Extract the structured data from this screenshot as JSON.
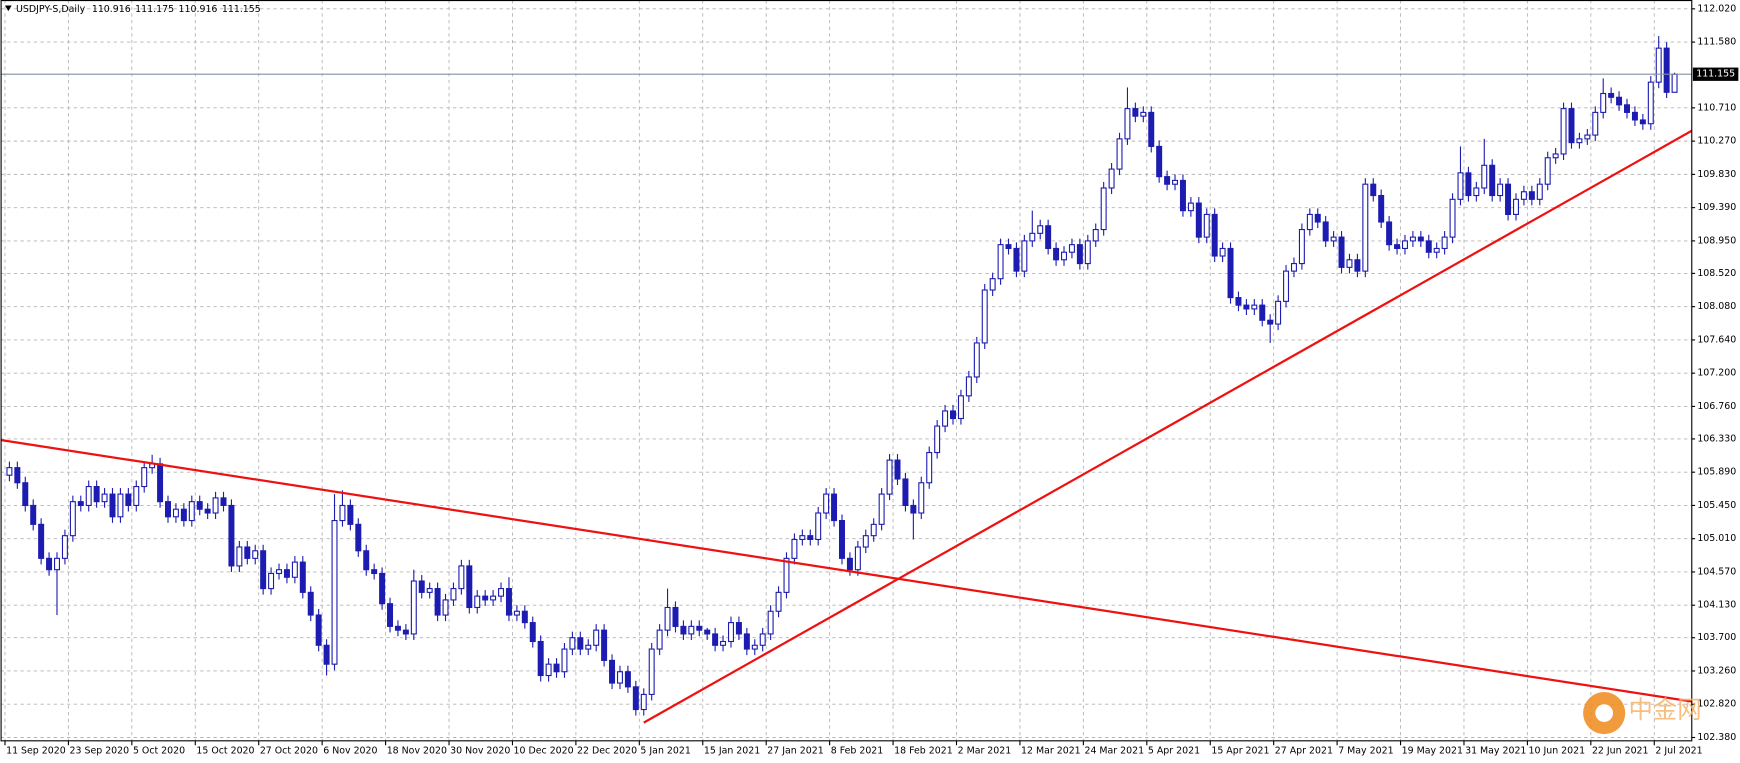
{
  "chart_data": {
    "type": "candlestick",
    "title": "USDJPY-S,Daily",
    "categories": [
      "11 Sep 2020",
      null,
      null,
      null,
      null,
      null,
      null,
      null,
      "23 Sep 2020",
      null,
      null,
      null,
      null,
      null,
      null,
      null,
      "5 Oct 2020",
      null,
      null,
      null,
      null,
      null,
      null,
      null,
      "15 Oct 2020",
      null,
      null,
      null,
      null,
      null,
      null,
      null,
      "27 Oct 2020",
      null,
      null,
      null,
      null,
      null,
      null,
      null,
      "6 Nov 2020",
      null,
      null,
      null,
      null,
      null,
      null,
      null,
      "18 Nov 2020",
      null,
      null,
      null,
      null,
      null,
      null,
      null,
      "30 Nov 2020",
      null,
      null,
      null,
      null,
      null,
      null,
      null,
      "10 Dec 2020",
      null,
      null,
      null,
      null,
      null,
      null,
      null,
      "22 Dec 2020",
      null,
      null,
      null,
      null,
      null,
      null,
      null,
      "5 Jan 2021",
      null,
      null,
      null,
      null,
      null,
      null,
      null,
      "15 Jan 2021",
      null,
      null,
      null,
      null,
      null,
      null,
      null,
      "27 Jan 2021",
      null,
      null,
      null,
      null,
      null,
      null,
      null,
      "8 Feb 2021",
      null,
      null,
      null,
      null,
      null,
      null,
      null,
      "18 Feb 2021",
      null,
      null,
      null,
      null,
      null,
      null,
      null,
      "2 Mar 2021",
      null,
      null,
      null,
      null,
      null,
      null,
      null,
      "12 Mar 2021",
      null,
      null,
      null,
      null,
      null,
      null,
      null,
      "24 Mar 2021",
      null,
      null,
      null,
      null,
      null,
      null,
      null,
      "5 Apr 2021",
      null,
      null,
      null,
      null,
      null,
      null,
      null,
      "15 Apr 2021",
      null,
      null,
      null,
      null,
      null,
      null,
      null,
      "27 Apr 2021",
      null,
      null,
      null,
      null,
      null,
      null,
      null,
      "7 May 2021",
      null,
      null,
      null,
      null,
      null,
      null,
      null,
      "19 May 2021",
      null,
      null,
      null,
      null,
      null,
      null,
      null,
      "31 May 2021",
      null,
      null,
      null,
      null,
      null,
      null,
      null,
      "10 Jun 2021",
      null,
      null,
      null,
      null,
      null,
      null,
      null,
      "22 Jun 2021",
      null,
      null,
      null,
      null,
      null,
      null,
      null,
      "2 Jul 2021",
      null,
      null
    ],
    "open": [
      105.85,
      105.95,
      105.75,
      105.45,
      105.2,
      104.75,
      104.6,
      104.75,
      105.05,
      105.5,
      105.45,
      105.7,
      105.5,
      105.6,
      105.3,
      105.6,
      105.45,
      105.7,
      105.95,
      106.0,
      105.5,
      105.3,
      105.4,
      105.25,
      105.5,
      105.4,
      105.35,
      105.55,
      105.45,
      104.65,
      104.9,
      104.75,
      104.85,
      104.35,
      104.55,
      104.6,
      104.5,
      104.7,
      104.3,
      104.0,
      103.6,
      103.35,
      105.25,
      105.45,
      105.2,
      104.85,
      104.6,
      104.55,
      104.15,
      103.85,
      103.8,
      103.75,
      104.45,
      104.3,
      104.35,
      104.0,
      104.2,
      104.35,
      104.65,
      104.1,
      104.25,
      104.2,
      104.25,
      104.35,
      104.0,
      104.05,
      103.9,
      103.65,
      103.2,
      103.35,
      103.25,
      103.55,
      103.7,
      103.55,
      103.6,
      103.8,
      103.4,
      103.1,
      103.25,
      103.05,
      102.75,
      102.95,
      103.55,
      103.8,
      104.1,
      103.85,
      103.75,
      103.85,
      103.8,
      103.75,
      103.6,
      103.65,
      103.9,
      103.75,
      103.55,
      103.6,
      103.75,
      104.05,
      104.3,
      104.75,
      105.0,
      105.05,
      105.0,
      105.35,
      105.6,
      105.25,
      104.75,
      104.6,
      104.9,
      105.05,
      105.2,
      105.6,
      106.05,
      105.8,
      105.45,
      105.35,
      105.75,
      106.15,
      106.5,
      106.7,
      106.6,
      106.9,
      107.15,
      107.6,
      108.3,
      108.45,
      108.9,
      108.85,
      108.55,
      108.95,
      109.05,
      109.15,
      108.85,
      108.7,
      108.8,
      108.9,
      108.65,
      108.95,
      109.1,
      109.65,
      109.9,
      110.3,
      110.7,
      110.6,
      110.65,
      110.2,
      109.8,
      109.7,
      109.75,
      109.35,
      109.45,
      109.0,
      109.3,
      108.75,
      108.85,
      108.2,
      108.1,
      108.05,
      108.1,
      107.9,
      107.85,
      108.15,
      108.55,
      108.65,
      109.1,
      109.3,
      109.2,
      108.95,
      109.0,
      108.6,
      108.7,
      108.55,
      109.7,
      109.55,
      109.2,
      108.9,
      108.85,
      108.95,
      109.0,
      108.95,
      108.8,
      108.85,
      109.0,
      109.5,
      109.85,
      109.55,
      109.65,
      109.95,
      109.55,
      109.7,
      109.3,
      109.5,
      109.6,
      109.5,
      109.7,
      110.05,
      110.1,
      110.7,
      110.25,
      110.3,
      110.35,
      110.65,
      110.9,
      110.85,
      110.75,
      110.65,
      110.55,
      110.5,
      111.05,
      111.5,
      110.916
    ],
    "high": [
      106.03,
      106.03,
      105.83,
      105.53,
      105.28,
      104.83,
      104.83,
      105.13,
      105.58,
      105.58,
      105.78,
      105.78,
      105.68,
      105.68,
      105.68,
      105.68,
      105.78,
      106.03,
      106.12,
      106.08,
      105.58,
      105.48,
      105.48,
      105.58,
      105.58,
      105.48,
      105.63,
      105.63,
      105.53,
      104.98,
      104.98,
      104.93,
      104.93,
      104.63,
      104.68,
      104.68,
      104.78,
      104.78,
      104.38,
      104.08,
      103.68,
      105.6,
      105.65,
      105.53,
      105.28,
      104.93,
      104.68,
      104.63,
      104.23,
      103.93,
      103.88,
      104.6,
      104.53,
      104.43,
      104.43,
      104.28,
      104.43,
      104.73,
      104.73,
      104.33,
      104.33,
      104.33,
      104.43,
      104.5,
      104.13,
      104.13,
      103.98,
      103.73,
      103.43,
      103.43,
      103.63,
      103.78,
      103.78,
      103.68,
      103.88,
      103.88,
      103.48,
      103.33,
      103.33,
      103.13,
      103.03,
      103.63,
      103.88,
      104.35,
      104.18,
      103.93,
      103.93,
      103.93,
      103.83,
      103.83,
      103.73,
      103.98,
      103.98,
      103.83,
      103.68,
      103.83,
      104.13,
      104.38,
      104.83,
      105.08,
      105.13,
      105.13,
      105.43,
      105.68,
      105.68,
      105.33,
      104.83,
      104.98,
      105.13,
      105.28,
      105.68,
      106.13,
      106.13,
      105.88,
      105.53,
      105.83,
      106.23,
      106.58,
      106.78,
      106.78,
      106.98,
      107.23,
      107.68,
      108.38,
      108.53,
      108.98,
      108.98,
      108.93,
      109.03,
      109.35,
      109.23,
      109.23,
      108.93,
      108.88,
      108.98,
      108.98,
      109.03,
      109.18,
      109.73,
      109.98,
      110.38,
      110.98,
      110.78,
      110.73,
      110.73,
      110.28,
      109.88,
      109.83,
      109.83,
      109.53,
      109.53,
      109.38,
      109.38,
      108.93,
      108.93,
      108.28,
      108.18,
      108.18,
      108.18,
      107.98,
      108.23,
      108.63,
      108.73,
      109.18,
      109.38,
      109.38,
      109.28,
      109.08,
      109.08,
      108.78,
      108.78,
      109.78,
      109.78,
      109.63,
      109.28,
      108.98,
      109.03,
      109.08,
      109.08,
      109.03,
      108.93,
      109.08,
      109.58,
      110.2,
      109.93,
      109.73,
      110.3,
      110.03,
      109.78,
      109.78,
      109.58,
      109.68,
      109.68,
      109.78,
      110.13,
      110.18,
      110.78,
      110.78,
      110.38,
      110.43,
      110.73,
      111.1,
      110.98,
      110.93,
      110.83,
      110.73,
      110.63,
      111.13,
      111.66,
      111.58,
      111.175
    ],
    "low": [
      105.77,
      105.67,
      105.37,
      105.12,
      104.67,
      104.52,
      104.0,
      104.67,
      104.97,
      105.37,
      105.37,
      105.42,
      105.42,
      105.22,
      105.22,
      105.37,
      105.37,
      105.62,
      105.87,
      105.42,
      105.22,
      105.22,
      105.17,
      105.17,
      105.32,
      105.27,
      105.27,
      105.37,
      104.57,
      104.57,
      104.67,
      104.67,
      104.27,
      104.27,
      104.47,
      104.42,
      104.42,
      104.22,
      103.92,
      103.52,
      103.2,
      103.27,
      105.17,
      105.12,
      104.77,
      104.52,
      104.47,
      104.07,
      103.77,
      103.72,
      103.67,
      103.67,
      104.22,
      104.22,
      103.92,
      103.92,
      104.12,
      104.27,
      104.02,
      104.02,
      104.12,
      104.12,
      104.17,
      103.92,
      103.92,
      103.82,
      103.57,
      103.12,
      103.12,
      103.17,
      103.17,
      103.47,
      103.47,
      103.47,
      103.52,
      103.32,
      103.02,
      103.02,
      102.97,
      102.67,
      102.67,
      102.87,
      103.47,
      103.72,
      103.77,
      103.67,
      103.67,
      103.72,
      103.67,
      103.52,
      103.52,
      103.57,
      103.67,
      103.47,
      103.47,
      103.52,
      103.67,
      103.97,
      104.22,
      104.67,
      104.92,
      104.92,
      104.92,
      105.27,
      105.17,
      104.67,
      104.52,
      104.52,
      104.82,
      104.97,
      105.12,
      105.52,
      105.72,
      105.37,
      105.0,
      105.27,
      105.67,
      106.07,
      106.42,
      106.52,
      106.52,
      106.82,
      107.07,
      107.52,
      108.22,
      108.37,
      108.77,
      108.47,
      108.47,
      108.87,
      108.97,
      108.77,
      108.62,
      108.62,
      108.72,
      108.57,
      108.57,
      108.87,
      109.02,
      109.57,
      109.82,
      110.22,
      110.52,
      110.52,
      110.12,
      109.72,
      109.62,
      109.62,
      109.27,
      109.27,
      108.92,
      108.92,
      108.67,
      108.67,
      108.12,
      108.02,
      107.97,
      107.97,
      107.82,
      107.6,
      107.77,
      108.07,
      108.47,
      108.57,
      109.02,
      109.12,
      108.87,
      108.87,
      108.52,
      108.52,
      108.47,
      108.47,
      109.47,
      109.12,
      108.82,
      108.77,
      108.77,
      108.87,
      108.87,
      108.72,
      108.72,
      108.77,
      108.92,
      109.42,
      109.47,
      109.47,
      109.57,
      109.47,
      109.47,
      109.22,
      109.22,
      109.42,
      109.42,
      109.42,
      109.62,
      109.97,
      110.02,
      110.17,
      110.17,
      110.22,
      110.27,
      110.57,
      110.77,
      110.67,
      110.57,
      110.47,
      110.42,
      110.42,
      110.97,
      110.84,
      110.916
    ],
    "close": [
      105.95,
      105.75,
      105.45,
      105.2,
      104.75,
      104.6,
      104.75,
      105.05,
      105.5,
      105.45,
      105.7,
      105.5,
      105.6,
      105.3,
      105.6,
      105.45,
      105.7,
      105.95,
      106.0,
      105.5,
      105.3,
      105.4,
      105.25,
      105.5,
      105.4,
      105.35,
      105.55,
      105.45,
      104.65,
      104.9,
      104.75,
      104.85,
      104.35,
      104.55,
      104.6,
      104.5,
      104.7,
      104.3,
      104.0,
      103.6,
      103.35,
      105.25,
      105.45,
      105.2,
      104.85,
      104.6,
      104.55,
      104.15,
      103.85,
      103.8,
      103.75,
      104.45,
      104.3,
      104.35,
      104.0,
      104.2,
      104.35,
      104.65,
      104.1,
      104.25,
      104.2,
      104.25,
      104.35,
      104.0,
      104.05,
      103.9,
      103.65,
      103.2,
      103.35,
      103.25,
      103.55,
      103.7,
      103.55,
      103.6,
      103.8,
      103.4,
      103.1,
      103.25,
      103.05,
      102.75,
      102.95,
      103.55,
      103.8,
      104.1,
      103.85,
      103.75,
      103.85,
      103.8,
      103.75,
      103.6,
      103.65,
      103.9,
      103.75,
      103.55,
      103.6,
      103.75,
      104.05,
      104.3,
      104.75,
      105.0,
      105.05,
      105.0,
      105.35,
      105.6,
      105.25,
      104.75,
      104.6,
      104.9,
      105.05,
      105.2,
      105.6,
      106.05,
      105.8,
      105.45,
      105.35,
      105.75,
      106.15,
      106.5,
      106.7,
      106.6,
      106.9,
      107.15,
      107.6,
      108.3,
      108.45,
      108.9,
      108.85,
      108.55,
      108.95,
      109.05,
      109.15,
      108.85,
      108.7,
      108.8,
      108.9,
      108.65,
      108.95,
      109.1,
      109.65,
      109.9,
      110.3,
      110.7,
      110.6,
      110.65,
      110.2,
      109.8,
      109.7,
      109.75,
      109.35,
      109.45,
      109.0,
      109.3,
      108.75,
      108.85,
      108.2,
      108.1,
      108.05,
      108.1,
      107.9,
      107.85,
      108.15,
      108.55,
      108.65,
      109.1,
      109.3,
      109.2,
      108.95,
      109.0,
      108.6,
      108.7,
      108.55,
      109.7,
      109.55,
      109.2,
      108.9,
      108.85,
      108.95,
      109.0,
      108.95,
      108.8,
      108.85,
      109.0,
      109.5,
      109.85,
      109.55,
      109.65,
      109.95,
      109.55,
      109.7,
      109.3,
      109.5,
      109.6,
      109.5,
      109.7,
      110.05,
      110.1,
      110.7,
      110.25,
      110.3,
      110.35,
      110.65,
      110.9,
      110.85,
      110.75,
      110.65,
      110.55,
      110.5,
      111.05,
      111.5,
      110.916,
      111.155
    ],
    "xlim": [
      -1.12,
      212.17
    ],
    "ylim": [
      102.336,
      112.137
    ],
    "yticks": [
      {
        "value": 112.02,
        "label": "112.020"
      },
      {
        "value": 111.58,
        "label": "111.580"
      },
      {
        "value": 110.71,
        "label": "110.710"
      },
      {
        "value": 110.27,
        "label": "110.270"
      },
      {
        "value": 109.83,
        "label": "109.830"
      },
      {
        "value": 109.39,
        "label": "109.390"
      },
      {
        "value": 108.95,
        "label": "108.950"
      },
      {
        "value": 108.52,
        "label": "108.520"
      },
      {
        "value": 108.08,
        "label": "108.080"
      },
      {
        "value": 107.64,
        "label": "107.640"
      },
      {
        "value": 107.2,
        "label": "107.200"
      },
      {
        "value": 106.76,
        "label": "106.760"
      },
      {
        "value": 106.33,
        "label": "106.330"
      },
      {
        "value": 105.89,
        "label": "105.890"
      },
      {
        "value": 105.45,
        "label": "105.450"
      },
      {
        "value": 105.01,
        "label": "105.010"
      },
      {
        "value": 104.57,
        "label": "104.570"
      },
      {
        "value": 104.13,
        "label": "104.130"
      },
      {
        "value": 103.7,
        "label": "103.700"
      },
      {
        "value": 103.26,
        "label": "103.260"
      },
      {
        "value": 102.82,
        "label": "102.820"
      },
      {
        "value": 102.38,
        "label": "102.380"
      }
    ],
    "grid": true,
    "up_color": "#ffffff",
    "down_color": "#1c1cb0",
    "current_price": {
      "value": 111.155,
      "label": "111.155"
    },
    "trendlines": [
      {
        "color": "#ee1111",
        "x": [
          -1.12,
          212.17
        ],
        "y": [
          106.316,
          102.856
        ]
      },
      {
        "color": "#ee1111",
        "x": [
          80.0,
          212.17
        ],
        "y": [
          102.577,
          110.407
        ]
      }
    ],
    "watermark": "中金网"
  }
}
